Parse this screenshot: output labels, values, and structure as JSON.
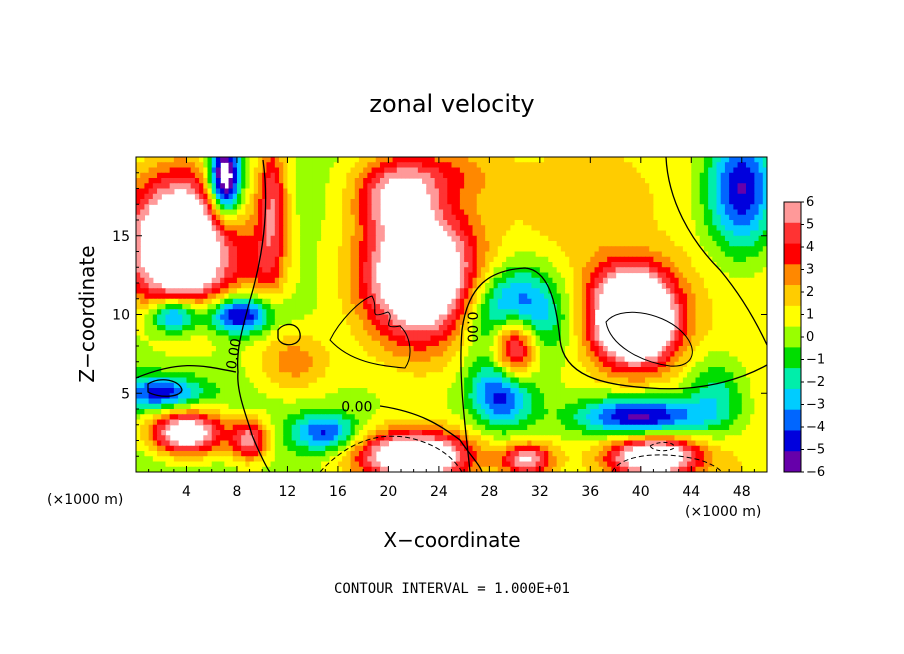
{
  "chart_data": {
    "type": "heatmap",
    "title": "zonal velocity",
    "xlabel": "X−coordinate",
    "ylabel": "Z−coordinate",
    "x_unit": "(×1000 m)",
    "y_unit": "(×1000 m)",
    "xlim": [
      0,
      50
    ],
    "ylim": [
      0,
      20
    ],
    "x_ticks": [
      4,
      8,
      12,
      16,
      20,
      24,
      28,
      32,
      36,
      40,
      44,
      48
    ],
    "x_tick_labels": [
      "4",
      "8",
      "12",
      "16",
      "20",
      "24",
      "28",
      "32",
      "36",
      "40",
      "44",
      "48"
    ],
    "y_ticks": [
      5,
      10,
      15
    ],
    "y_tick_labels": [
      "5",
      "10",
      "15"
    ],
    "colorbar": {
      "min": -6,
      "max": 6,
      "tick_labels": [
        "6",
        "5",
        "4",
        "3",
        "2",
        "1",
        "0",
        "−1",
        "−2",
        "−3",
        "−4",
        "−5",
        "−6"
      ],
      "colors": [
        "#ff9999",
        "#ff3333",
        "#ff0000",
        "#ff8800",
        "#ffcc00",
        "#ffff00",
        "#99ff00",
        "#00dd00",
        "#00eeaa",
        "#00ccff",
        "#0066ff",
        "#0000dd",
        "#6600aa"
      ]
    },
    "contour_labels": [
      {
        "text": "0.00",
        "x": 7.8,
        "z": 7.5,
        "rotate": -80
      },
      {
        "text": "0.00",
        "x": 17.5,
        "z": 4.1,
        "rotate": 0
      },
      {
        "text": "0.00",
        "x": 26.6,
        "z": 9.2,
        "rotate": 90
      }
    ],
    "features": [
      {
        "x": 3.5,
        "z": 14.5,
        "sx": 4.5,
        "sz": 4.5,
        "v": 12
      },
      {
        "x": 22.5,
        "z": 12.5,
        "sx": 4.5,
        "sz": 4.2,
        "v": 11
      },
      {
        "x": 20.5,
        "z": 17.5,
        "sx": 3.0,
        "sz": 2.2,
        "v": 5
      },
      {
        "x": 39.5,
        "z": 9.5,
        "sx": 3.2,
        "sz": 2.6,
        "v": 13
      },
      {
        "x": 39.0,
        "z": 12.0,
        "sx": 3.5,
        "sz": 2.0,
        "v": 3
      },
      {
        "x": 30.0,
        "z": 8.0,
        "sx": 1.8,
        "sz": 2.2,
        "v": 9
      },
      {
        "x": 22.0,
        "z": 1.0,
        "sx": 4.5,
        "sz": 1.6,
        "v": 10
      },
      {
        "x": 41.0,
        "z": 1.0,
        "sx": 3.5,
        "sz": 1.3,
        "v": 9
      },
      {
        "x": 4.0,
        "z": 2.5,
        "sx": 3.0,
        "sz": 1.4,
        "v": 9
      },
      {
        "x": 31.0,
        "z": 0.8,
        "sx": 2.0,
        "sz": 1.0,
        "v": 6
      },
      {
        "x": 10.8,
        "z": 17.0,
        "sx": 1.2,
        "sz": 4.5,
        "v": 5
      },
      {
        "x": 24.0,
        "z": 19.0,
        "sx": 5.0,
        "sz": 1.8,
        "v": 2.5
      },
      {
        "x": 7.0,
        "z": 18.5,
        "sx": 1.3,
        "sz": 2.5,
        "v": -10
      },
      {
        "x": 8.0,
        "z": 10.0,
        "sx": 2.5,
        "sz": 1.2,
        "v": -7
      },
      {
        "x": 3.0,
        "z": 10.0,
        "sx": 2.0,
        "sz": 1.2,
        "v": -7
      },
      {
        "x": 2.0,
        "z": 5.0,
        "sx": 3.0,
        "sz": 1.0,
        "v": -5
      },
      {
        "x": 30.0,
        "z": 10.0,
        "sx": 3.5,
        "sz": 2.8,
        "v": -7
      },
      {
        "x": 29.0,
        "z": 5.0,
        "sx": 2.5,
        "sz": 2.2,
        "v": -6
      },
      {
        "x": 40.0,
        "z": 3.5,
        "sx": 5.0,
        "sz": 1.3,
        "v": -7
      },
      {
        "x": 15.0,
        "z": 2.5,
        "sx": 2.5,
        "sz": 1.2,
        "v": -5
      },
      {
        "x": 48.0,
        "z": 18.0,
        "sx": 2.8,
        "sz": 4.0,
        "v": -7
      },
      {
        "x": 46.0,
        "z": 5.0,
        "sx": 2.5,
        "sz": 2.5,
        "v": -3
      },
      {
        "x": 9.0,
        "z": 2.0,
        "sx": 1.5,
        "sz": 1.3,
        "v": 6
      },
      {
        "x": 12.5,
        "z": 7.0,
        "sx": 3.0,
        "sz": 2.0,
        "v": 3
      },
      {
        "x": 35.0,
        "z": 17.0,
        "sx": 5.0,
        "sz": 3.5,
        "v": 1.5
      },
      {
        "x": 10.0,
        "z": 13.0,
        "sx": 2.0,
        "sz": 2.0,
        "v": 2
      }
    ]
  }
}
